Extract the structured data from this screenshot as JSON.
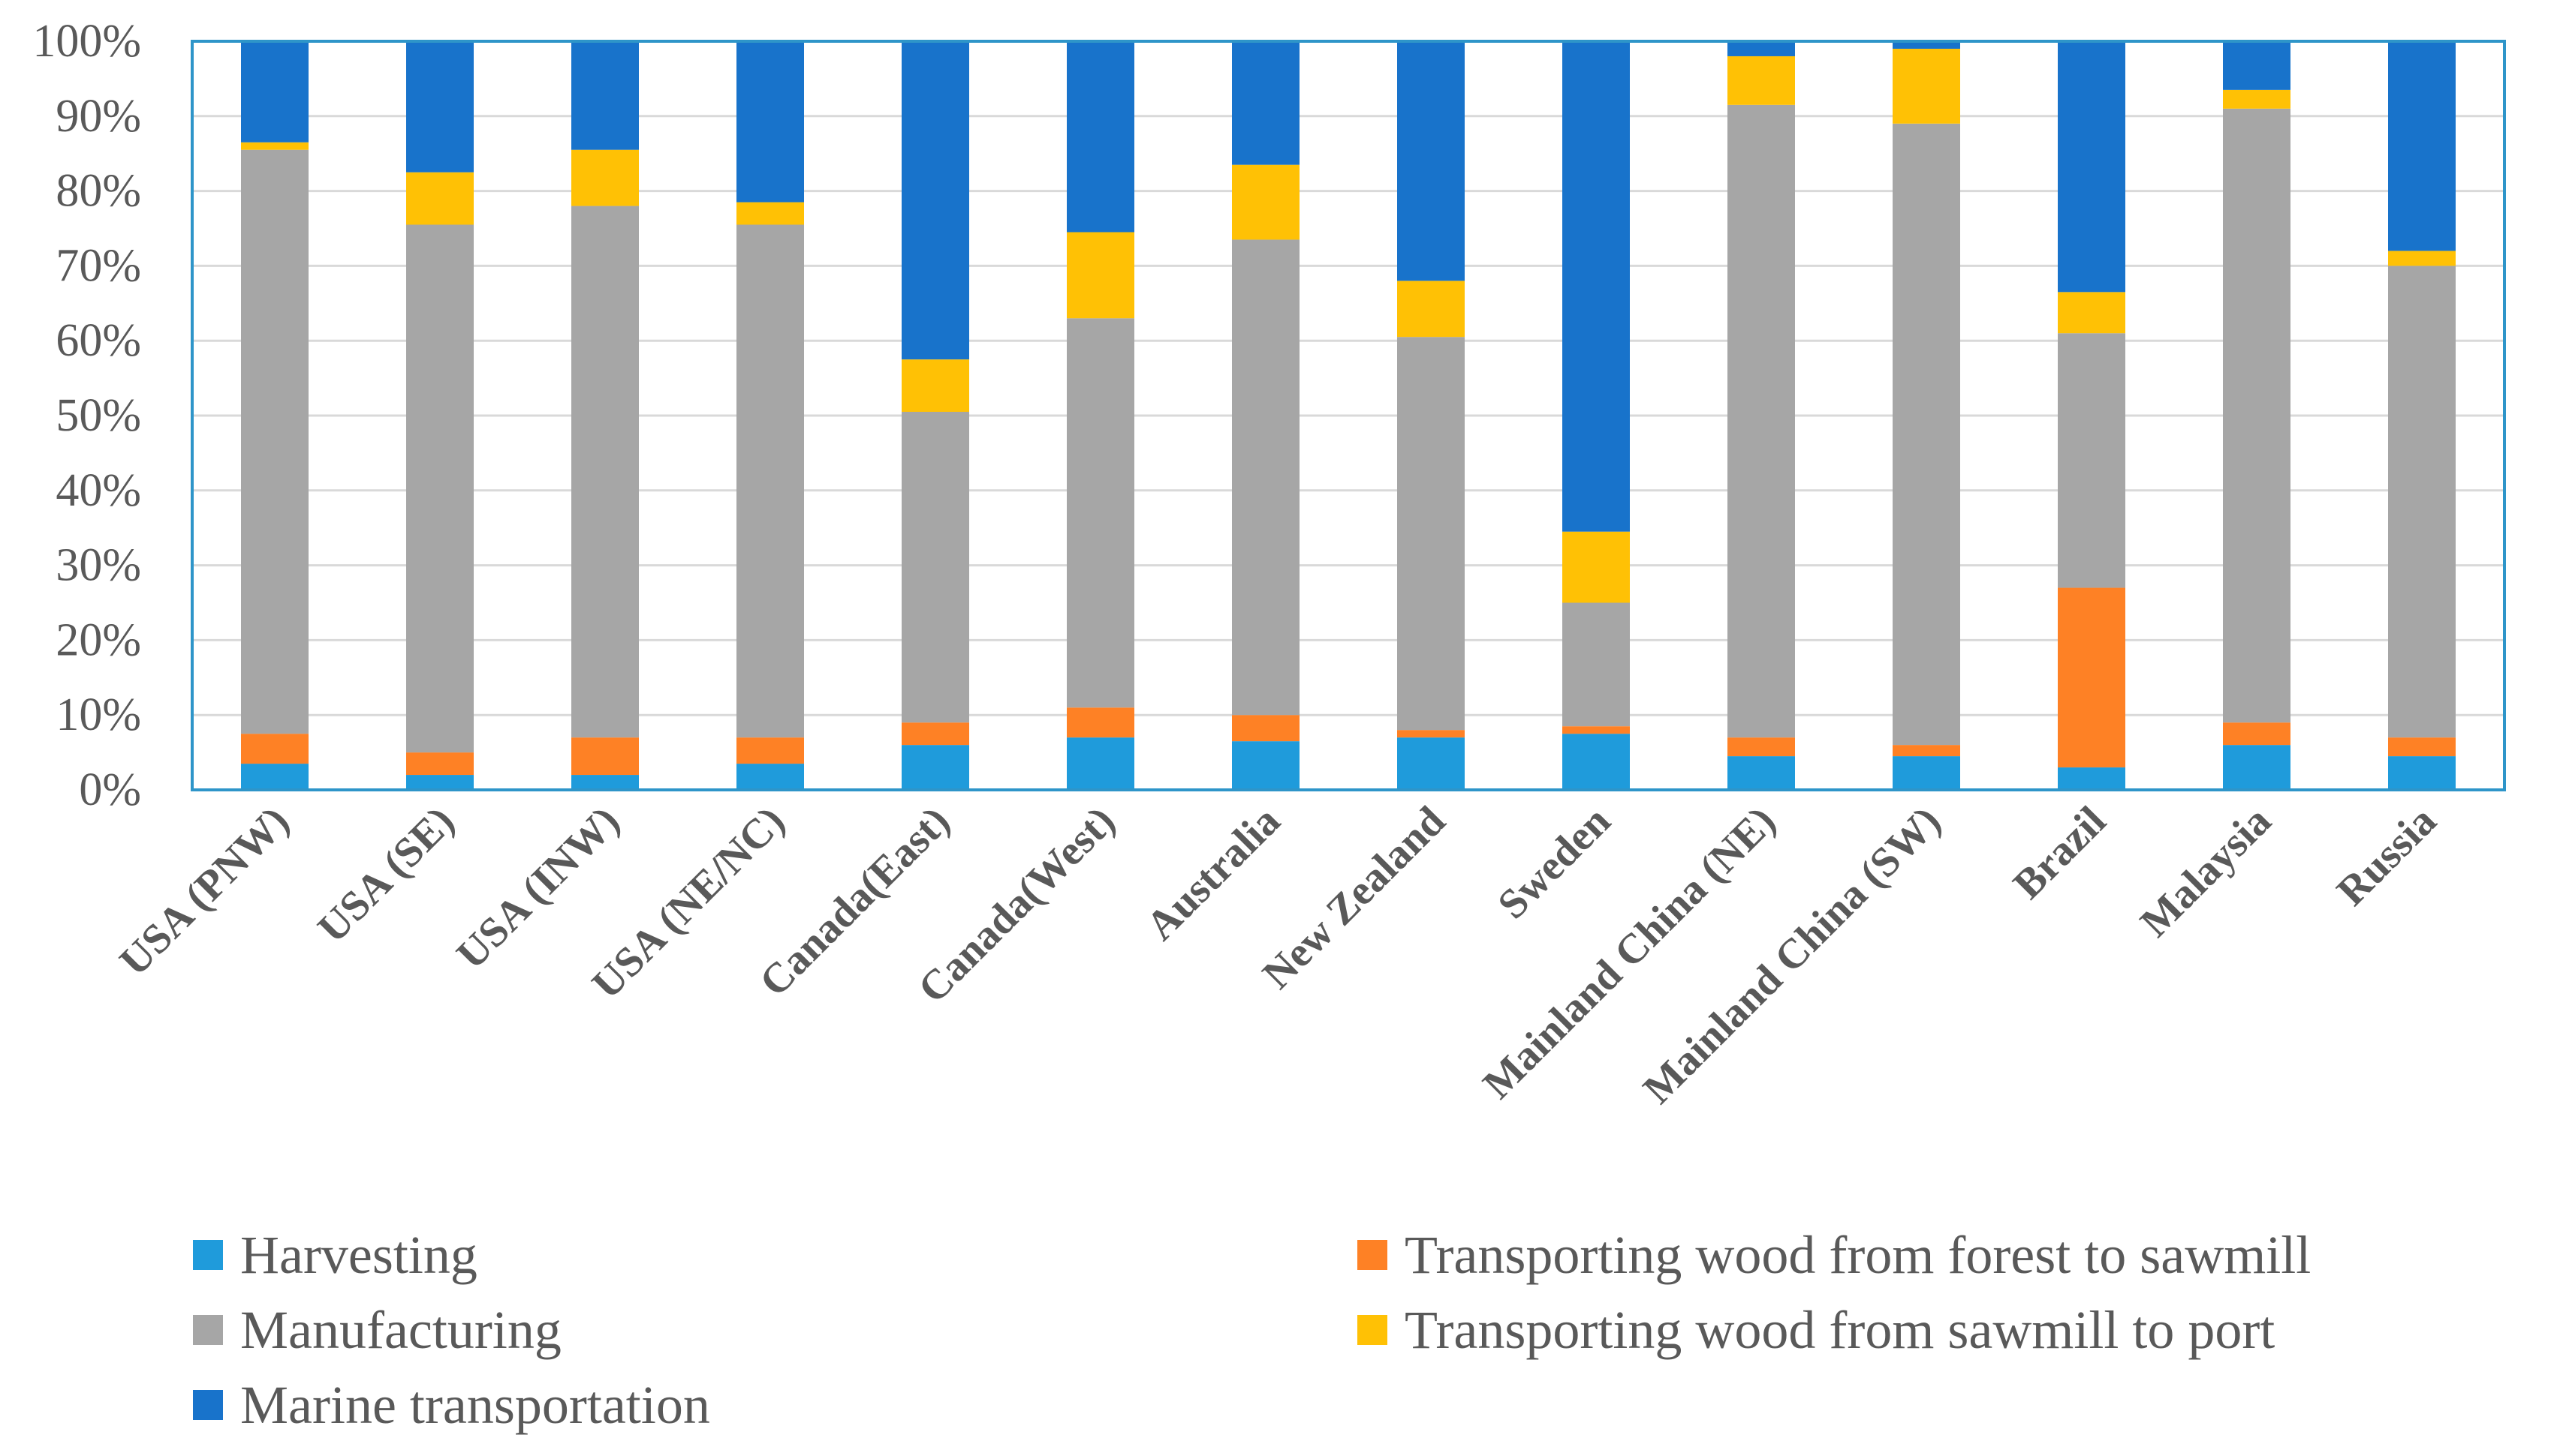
{
  "chart_data": {
    "type": "bar",
    "stacked": true,
    "percent": true,
    "ylim": [
      0,
      100
    ],
    "ytick_step": 10,
    "tick_labels": [
      "0%",
      "10%",
      "20%",
      "30%",
      "40%",
      "50%",
      "60%",
      "70%",
      "80%",
      "90%",
      "100%"
    ],
    "xlabel": "",
    "ylabel": "",
    "title": "",
    "categories": [
      "USA (PNW)",
      "USA (SE)",
      "USA (INW)",
      "USA (NE/NC)",
      "Canada(East)",
      "Canada(West)",
      "Australia",
      "New Zealand",
      "Sweden",
      "Mainland China (NE)",
      "Mainland China (SW)",
      "Brazil",
      "Malaysia",
      "Russia"
    ],
    "series": [
      {
        "name": "Harvesting",
        "color": "#1F9BDB",
        "values": [
          3.5,
          2,
          2,
          3.5,
          6,
          7,
          6.5,
          7,
          7.5,
          4.5,
          4.5,
          3,
          6,
          4.5
        ]
      },
      {
        "name": "Transporting wood from forest to sawmill",
        "color": "#FE8125",
        "values": [
          4,
          3,
          5,
          3.5,
          3,
          4,
          3.5,
          1,
          1,
          2.5,
          1.5,
          24,
          3,
          2.5
        ]
      },
      {
        "name": "Manufacturing",
        "color": "#A6A6A6",
        "values": [
          78,
          70.5,
          71,
          68.5,
          41.5,
          52,
          63.5,
          52.5,
          16.5,
          84.5,
          83,
          34,
          82,
          63
        ]
      },
      {
        "name": "Transporting wood from sawmill to port",
        "color": "#FFC105",
        "values": [
          1,
          7,
          7.5,
          3,
          7,
          11.5,
          10,
          7.5,
          9.5,
          6.5,
          10,
          5.5,
          2.5,
          2
        ]
      },
      {
        "name": "Marine transportation",
        "color": "#1873CB",
        "values": [
          13.5,
          17.5,
          14.5,
          21.5,
          42.5,
          25.5,
          16.5,
          32,
          65.5,
          2,
          1,
          33.5,
          6.5,
          28
        ]
      }
    ],
    "legend": {
      "placement": "bottom",
      "order": [
        "Harvesting",
        "Transporting wood from forest to sawmill",
        "Manufacturing",
        "Transporting wood from sawmill to port",
        "Marine transportation"
      ]
    },
    "grid": true,
    "plot_border_color": "#2E95C9",
    "grid_color": "#D9D9D9"
  }
}
